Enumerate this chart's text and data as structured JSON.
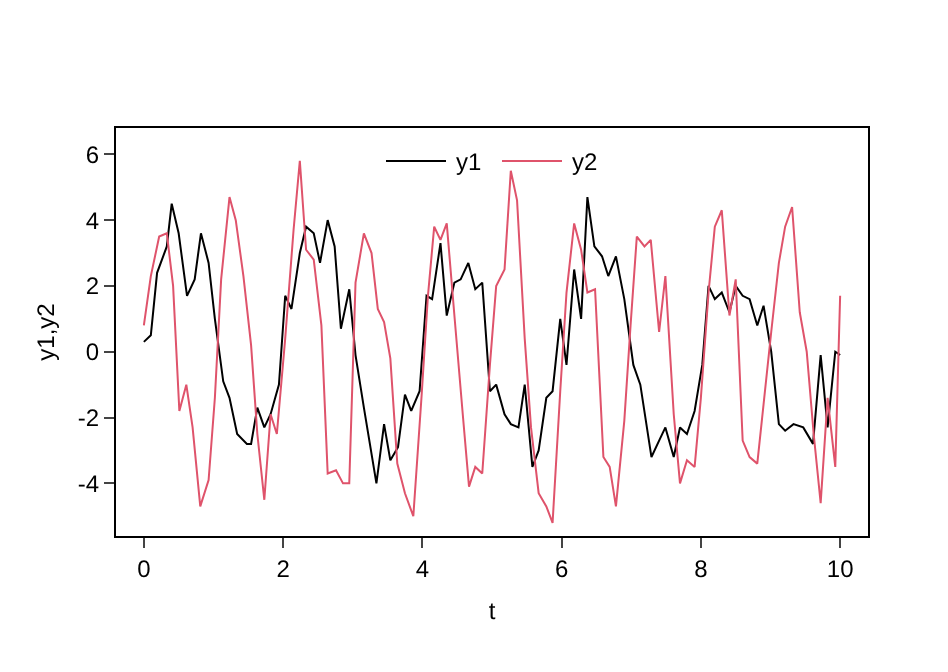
{
  "chart_data": {
    "type": "line",
    "xlabel": "t",
    "ylabel": "y1,y2",
    "xlim": [
      -0.4,
      10.4
    ],
    "ylim": [
      -5.6,
      6.8
    ],
    "xticks": [
      0,
      2,
      4,
      6,
      8,
      10
    ],
    "yticks": [
      -4,
      -2,
      0,
      2,
      4,
      6
    ],
    "grid": false,
    "legend": "top",
    "marker": "none",
    "line_style": "solid",
    "series": [
      {
        "name": "y1",
        "color": "#000000",
        "x": [
          0,
          0.1,
          0.19,
          0.33,
          0.4,
          0.5,
          0.62,
          0.73,
          0.82,
          0.93,
          1.02,
          1.14,
          1.23,
          1.34,
          1.48,
          1.54,
          1.63,
          1.73,
          1.82,
          1.94,
          2.03,
          2.12,
          2.24,
          2.33,
          2.44,
          2.53,
          2.64,
          2.74,
          2.83,
          2.95,
          3.04,
          3.16,
          3.34,
          3.45,
          3.54,
          3.65,
          3.75,
          3.84,
          3.96,
          4.06,
          4.14,
          4.26,
          4.35,
          4.46,
          4.55,
          4.66,
          4.76,
          4.86,
          4.97,
          5.06,
          5.18,
          5.27,
          5.38,
          5.47,
          5.58,
          5.67,
          5.78,
          5.87,
          5.98,
          6.07,
          6.18,
          6.28,
          6.37,
          6.47,
          6.58,
          6.67,
          6.78,
          6.9,
          7.03,
          7.13,
          7.29,
          7.4,
          7.49,
          7.61,
          7.7,
          7.8,
          7.91,
          8.02,
          8.11,
          8.2,
          8.3,
          8.41,
          8.5,
          8.6,
          8.7,
          8.81,
          8.9,
          9.01,
          9.12,
          9.21,
          9.33,
          9.47,
          9.61,
          9.72,
          9.82,
          9.93,
          10
        ],
        "values": [
          0.3,
          0.5,
          2.4,
          3.2,
          4.5,
          3.6,
          1.7,
          2.2,
          3.6,
          2.7,
          1,
          -0.9,
          -1.4,
          -2.5,
          -2.8,
          -2.8,
          -1.7,
          -2.3,
          -1.9,
          -1,
          1.7,
          1.3,
          3,
          3.8,
          3.6,
          2.7,
          4,
          3.2,
          0.7,
          1.9,
          -0.1,
          -1.7,
          -4,
          -2.2,
          -3.3,
          -2.9,
          -1.3,
          -1.8,
          -1.2,
          1.7,
          1.6,
          3.3,
          1.1,
          2.1,
          2.2,
          2.7,
          1.9,
          2.1,
          -1.2,
          -1,
          -1.9,
          -2.2,
          -2.3,
          -1,
          -3.5,
          -3,
          -1.4,
          -1.2,
          1,
          -0.4,
          2.5,
          1,
          4.7,
          3.2,
          2.9,
          2.3,
          2.9,
          1.6,
          -0.4,
          -1,
          -3.2,
          -2.7,
          -2.3,
          -3.2,
          -2.3,
          -2.5,
          -1.8,
          -0.4,
          2,
          1.6,
          1.8,
          1.2,
          2,
          1.7,
          1.6,
          0.8,
          1.4,
          0,
          -2.2,
          -2.4,
          -2.2,
          -2.3,
          -2.8,
          -0.1,
          -2.3,
          0,
          -0.1
        ]
      },
      {
        "name": "y2",
        "color": "#df536b",
        "x": [
          0,
          0.1,
          0.22,
          0.33,
          0.42,
          0.51,
          0.61,
          0.7,
          0.81,
          0.93,
          1.02,
          1.11,
          1.23,
          1.32,
          1.43,
          1.54,
          1.63,
          1.73,
          1.82,
          1.91,
          2.03,
          2.15,
          2.24,
          2.33,
          2.44,
          2.55,
          2.64,
          2.76,
          2.86,
          2.95,
          3.04,
          3.16,
          3.27,
          3.36,
          3.45,
          3.54,
          3.64,
          3.75,
          3.87,
          3.99,
          4.08,
          4.17,
          4.26,
          4.35,
          4.46,
          4.58,
          4.67,
          4.76,
          4.86,
          4.97,
          5.06,
          5.18,
          5.27,
          5.36,
          5.47,
          5.56,
          5.67,
          5.78,
          5.87,
          5.98,
          6.07,
          6.18,
          6.28,
          6.37,
          6.48,
          6.6,
          6.69,
          6.78,
          6.9,
          6.99,
          7.08,
          7.19,
          7.28,
          7.4,
          7.49,
          7.61,
          7.7,
          7.8,
          7.91,
          8,
          8.11,
          8.2,
          8.3,
          8.41,
          8.5,
          8.6,
          8.7,
          8.81,
          8.9,
          9.01,
          9.12,
          9.21,
          9.31,
          9.42,
          9.52,
          9.62,
          9.72,
          9.82,
          9.93,
          10
        ],
        "values": [
          0.8,
          2.3,
          3.5,
          3.6,
          2,
          -1.8,
          -1,
          -2.3,
          -4.7,
          -3.9,
          -1.4,
          2.2,
          4.7,
          4,
          2.3,
          0.2,
          -2.5,
          -4.5,
          -1.9,
          -2.5,
          0.4,
          3.7,
          5.8,
          3.1,
          2.8,
          0.8,
          -3.7,
          -3.6,
          -4,
          -4,
          2.1,
          3.6,
          3,
          1.3,
          0.9,
          -0.2,
          -3.4,
          -4.3,
          -5,
          -1.3,
          1.7,
          3.8,
          3.4,
          3.9,
          1.1,
          -1.9,
          -4.1,
          -3.5,
          -3.7,
          -0.4,
          2,
          2.5,
          5.5,
          4.6,
          0.4,
          -2.3,
          -4.3,
          -4.7,
          -5.2,
          -1.2,
          1.8,
          3.9,
          3.1,
          1.8,
          1.9,
          -3.2,
          -3.5,
          -4.7,
          -2.1,
          0.8,
          3.5,
          3.2,
          3.4,
          0.6,
          2.3,
          -1.9,
          -4,
          -3.3,
          -3.5,
          -1.4,
          1.8,
          3.8,
          4.3,
          1.1,
          2.2,
          -2.7,
          -3.2,
          -3.4,
          -1.6,
          0.6,
          2.7,
          3.8,
          4.4,
          1.2,
          0,
          -2.5,
          -4.6,
          -1.4,
          -3.5,
          1.7
        ]
      }
    ]
  }
}
